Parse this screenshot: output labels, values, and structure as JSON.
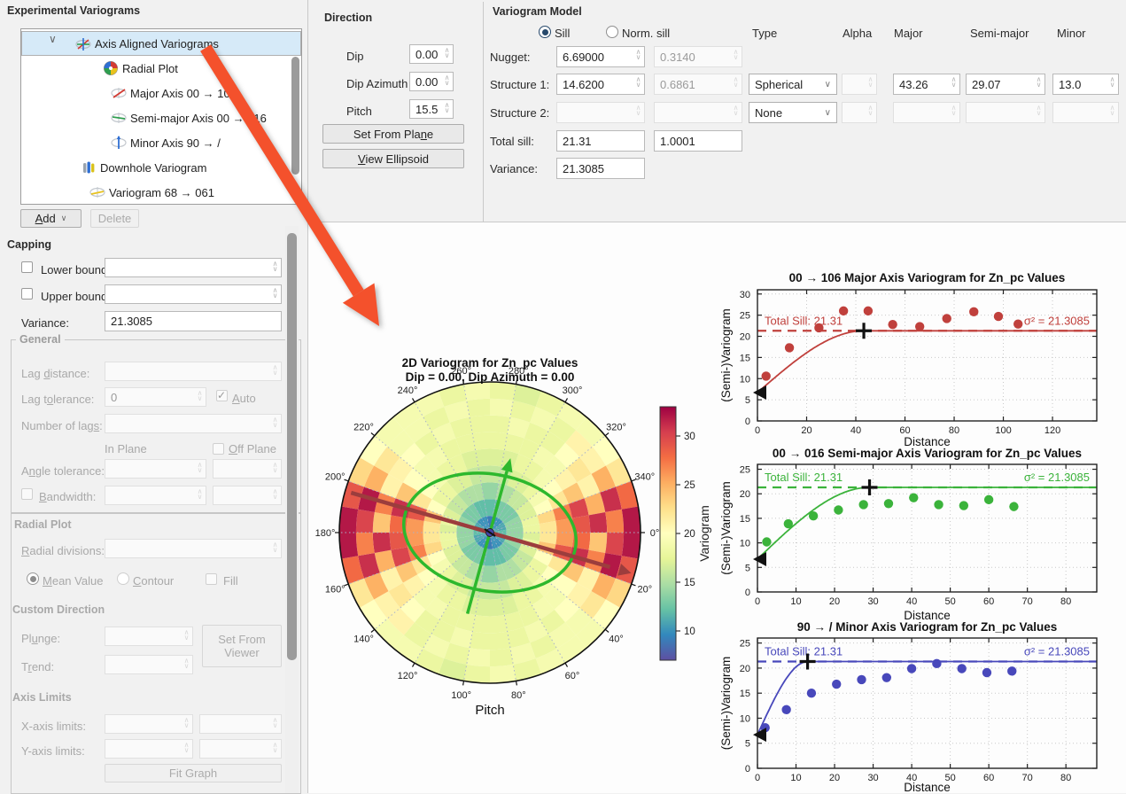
{
  "left": {
    "title": "Experimental Variograms",
    "tree": [
      {
        "label": "Axis Aligned Variograms",
        "icon": "axes-variogram",
        "selected": true,
        "expanded": true
      },
      {
        "label": "Radial Plot",
        "icon": "radial-plot"
      },
      {
        "label": "Major Axis 00 → 106",
        "icon": "axis-red"
      },
      {
        "label": "Semi-major Axis 00 → 016",
        "icon": "axis-green"
      },
      {
        "label": "Minor Axis 90 → /",
        "icon": "axis-blue"
      },
      {
        "label": "Downhole Variogram",
        "icon": "downhole"
      },
      {
        "label": "Variogram 68 → 061",
        "icon": "axis-yellow"
      }
    ],
    "add": "Add",
    "delete": "Delete",
    "capping": {
      "title": "Capping",
      "lower": "Lower bound:",
      "upper": "Upper bound:",
      "variance_label": "Variance:",
      "variance": "21.3085"
    },
    "general": {
      "title": "General",
      "lag_distance": "Lag distance:",
      "lag_tolerance": "Lag tolerance:",
      "lag_tolerance_value": "0",
      "auto": "Auto",
      "number_of_lags": "Number of lags:",
      "in_plane": "In Plane",
      "off_plane": "Off Plane",
      "angle_tolerance": "Angle tolerance:",
      "bandwidth": "Bandwidth:"
    },
    "radial": {
      "title": "Radial Plot",
      "divisions": "Radial divisions:",
      "mean_value": "Mean Value",
      "contour": "Contour",
      "fill": "Fill"
    },
    "custom": {
      "title": "Custom Direction",
      "plunge": "Plunge:",
      "trend": "Trend:",
      "set_from_viewer": "Set From Viewer"
    },
    "axis_limits": {
      "title": "Axis Limits",
      "x": "X-axis limits:",
      "y": "Y-axis limits:",
      "fit": "Fit Graph"
    }
  },
  "direction": {
    "title": "Direction",
    "dip": "Dip",
    "dip_value": "0.00",
    "dip_azimuth": "Dip Azimuth",
    "dip_azimuth_value": "0.00",
    "pitch": "Pitch",
    "pitch_value": "15.5",
    "set_from_plane": "Set From Plane",
    "view_ellipsoid": "View Ellipsoid"
  },
  "model": {
    "title": "Variogram Model",
    "radio_sill": "Sill",
    "radio_norm_sill": "Norm. sill",
    "col_type": "Type",
    "col_alpha": "Alpha",
    "col_major": "Major",
    "col_semi_major": "Semi-major",
    "col_minor": "Minor",
    "rows": {
      "nugget": {
        "label": "Nugget:",
        "sill": "6.69000",
        "norm": "0.3140"
      },
      "structure1": {
        "label": "Structure 1:",
        "sill": "14.6200",
        "norm": "0.6861",
        "type": "Spherical",
        "major": "43.26",
        "semi_major": "29.07",
        "minor": "13.0"
      },
      "structure2": {
        "label": "Structure 2:",
        "type": "None"
      },
      "total_sill": {
        "label": "Total sill:",
        "value": "21.31",
        "norm": "1.0001"
      },
      "variance": {
        "label": "Variance:",
        "value": "21.3085"
      }
    }
  },
  "colors": {
    "major_series": "#c0403c",
    "semi_major_series": "#3bb33b",
    "minor_series": "#4848bb",
    "ellipse": "#2db82d",
    "major_axis_arrow": "#9c3d3d",
    "annotation_arrow": "#f4512c",
    "selection_bg": "#d6eaf8",
    "radio_selected": "#27496b"
  },
  "chart_data": [
    {
      "type": "heatmap",
      "title": "2D Variogram for Zn_pc Values",
      "subtitle": "Dip = 0.00, Dip Azimuth = 0.00",
      "xlabel": "Pitch",
      "colorbar_label": "Variogram",
      "colorbar_ticks": [
        10,
        15,
        20,
        25,
        30
      ],
      "vmin": 7,
      "vmax": 33,
      "angle_step_deg": 20,
      "sector_width_deg": 10,
      "rings": 9,
      "colormap": [
        "#5e4fa2",
        "#3288bd",
        "#66c2a5",
        "#abdda4",
        "#e6f598",
        "#ffffbf",
        "#fee08b",
        "#fdae61",
        "#f46d43",
        "#d53e4f",
        "#9e0142"
      ],
      "values_by_sector_0_to_180_mirrored": [
        [
          12,
          14,
          17,
          22,
          26,
          28,
          24,
          30,
          32
        ],
        [
          12,
          14,
          18,
          24,
          29,
          31,
          27,
          32,
          29
        ],
        [
          11,
          14,
          17,
          20,
          22,
          24,
          21,
          25,
          23
        ],
        [
          11,
          13,
          16,
          18,
          20,
          20,
          21,
          22,
          20
        ],
        [
          10,
          13,
          16,
          18,
          19,
          19,
          20,
          19,
          19
        ],
        [
          10,
          13,
          15,
          17,
          18,
          19,
          18,
          19,
          19
        ],
        [
          10,
          12,
          15,
          17,
          18,
          18,
          19,
          18,
          19
        ],
        [
          10,
          12,
          15,
          16,
          17,
          18,
          18,
          19,
          18
        ],
        [
          9,
          12,
          14,
          16,
          17,
          18,
          18,
          18,
          19
        ],
        [
          9,
          12,
          14,
          16,
          17,
          18,
          18,
          19,
          18
        ],
        [
          10,
          12,
          15,
          16,
          17,
          18,
          19,
          18,
          17
        ],
        [
          10,
          13,
          15,
          17,
          18,
          18,
          18,
          19,
          18
        ],
        [
          10,
          13,
          16,
          17,
          18,
          19,
          18,
          18,
          19
        ],
        [
          10,
          13,
          16,
          18,
          19,
          19,
          20,
          21,
          19
        ],
        [
          11,
          13,
          17,
          19,
          20,
          21,
          22,
          21,
          20
        ],
        [
          11,
          14,
          17,
          20,
          22,
          24,
          21,
          25,
          22
        ],
        [
          11,
          14,
          18,
          23,
          27,
          30,
          25,
          31,
          28
        ],
        [
          12,
          14,
          18,
          22,
          26,
          29,
          31,
          27,
          32
        ]
      ],
      "ellipse_overlay": {
        "major_range": 43.26,
        "semi_major_range": 29.07,
        "rotation_pitch_deg": 16,
        "radius_units": 75
      }
    },
    {
      "type": "scatter",
      "title": "00 → 106 Major Axis Variogram for Zn_pc Values",
      "xlabel": "Distance",
      "ylabel": "(Semi-)Variogram",
      "xlim": [
        0,
        138
      ],
      "ylim": [
        0,
        31
      ],
      "xticks": [
        0,
        20,
        40,
        60,
        80,
        100,
        120
      ],
      "yticks": [
        0,
        5,
        10,
        15,
        20,
        25,
        30
      ],
      "color": "#c0403c",
      "points_x": [
        3.5,
        13,
        25,
        35,
        45,
        55,
        66,
        77,
        88,
        98,
        106
      ],
      "points_y": [
        10.6,
        17.3,
        22.0,
        26.0,
        26.0,
        22.8,
        22.3,
        24.2,
        25.8,
        24.7,
        22.9
      ],
      "model": {
        "type": "spherical",
        "nugget": 6.69,
        "total_sill": 21.31,
        "range": 43.26
      },
      "total_sill_label": "Total Sill: 21.31",
      "sigma_label": "σ² = 21.3085"
    },
    {
      "type": "scatter",
      "title": "00 → 016 Semi-major Axis Variogram for Zn_pc Values",
      "xlabel": "Distance",
      "ylabel": "(Semi-)Variogram",
      "xlim": [
        0,
        88
      ],
      "ylim": [
        0,
        26
      ],
      "xticks": [
        0,
        10,
        20,
        30,
        40,
        50,
        60,
        70,
        80
      ],
      "yticks": [
        0,
        5,
        10,
        15,
        20,
        25
      ],
      "color": "#3bb33b",
      "points_x": [
        2.4,
        8,
        14.5,
        21,
        27.5,
        34,
        40.5,
        47,
        53.5,
        60,
        66.5
      ],
      "points_y": [
        10.2,
        13.9,
        15.5,
        16.7,
        17.8,
        18.0,
        19.2,
        17.8,
        17.6,
        18.8,
        17.4
      ],
      "model": {
        "type": "spherical",
        "nugget": 6.69,
        "total_sill": 21.31,
        "range": 29.07
      },
      "total_sill_label": "Total Sill: 21.31",
      "sigma_label": "σ² = 21.3085"
    },
    {
      "type": "scatter",
      "title": "90 → / Minor Axis Variogram for Zn_pc Values",
      "xlabel": "Distance",
      "ylabel": "(Semi-)Variogram",
      "xlim": [
        0,
        88
      ],
      "ylim": [
        0,
        26
      ],
      "xticks": [
        0,
        10,
        20,
        30,
        40,
        50,
        60,
        70,
        80
      ],
      "yticks": [
        0,
        5,
        10,
        15,
        20,
        25
      ],
      "color": "#4848bb",
      "points_x": [
        2,
        7.5,
        14,
        20.5,
        27,
        33.5,
        40,
        46.5,
        53,
        59.5,
        66
      ],
      "points_y": [
        8.1,
        11.7,
        15.0,
        16.8,
        17.7,
        18.1,
        19.9,
        20.9,
        19.9,
        19.1,
        19.4
      ],
      "model": {
        "type": "spherical",
        "nugget": 6.69,
        "total_sill": 21.31,
        "range": 13.0
      },
      "total_sill_label": "Total Sill: 21.31",
      "sigma_label": "σ² = 21.3085"
    }
  ]
}
